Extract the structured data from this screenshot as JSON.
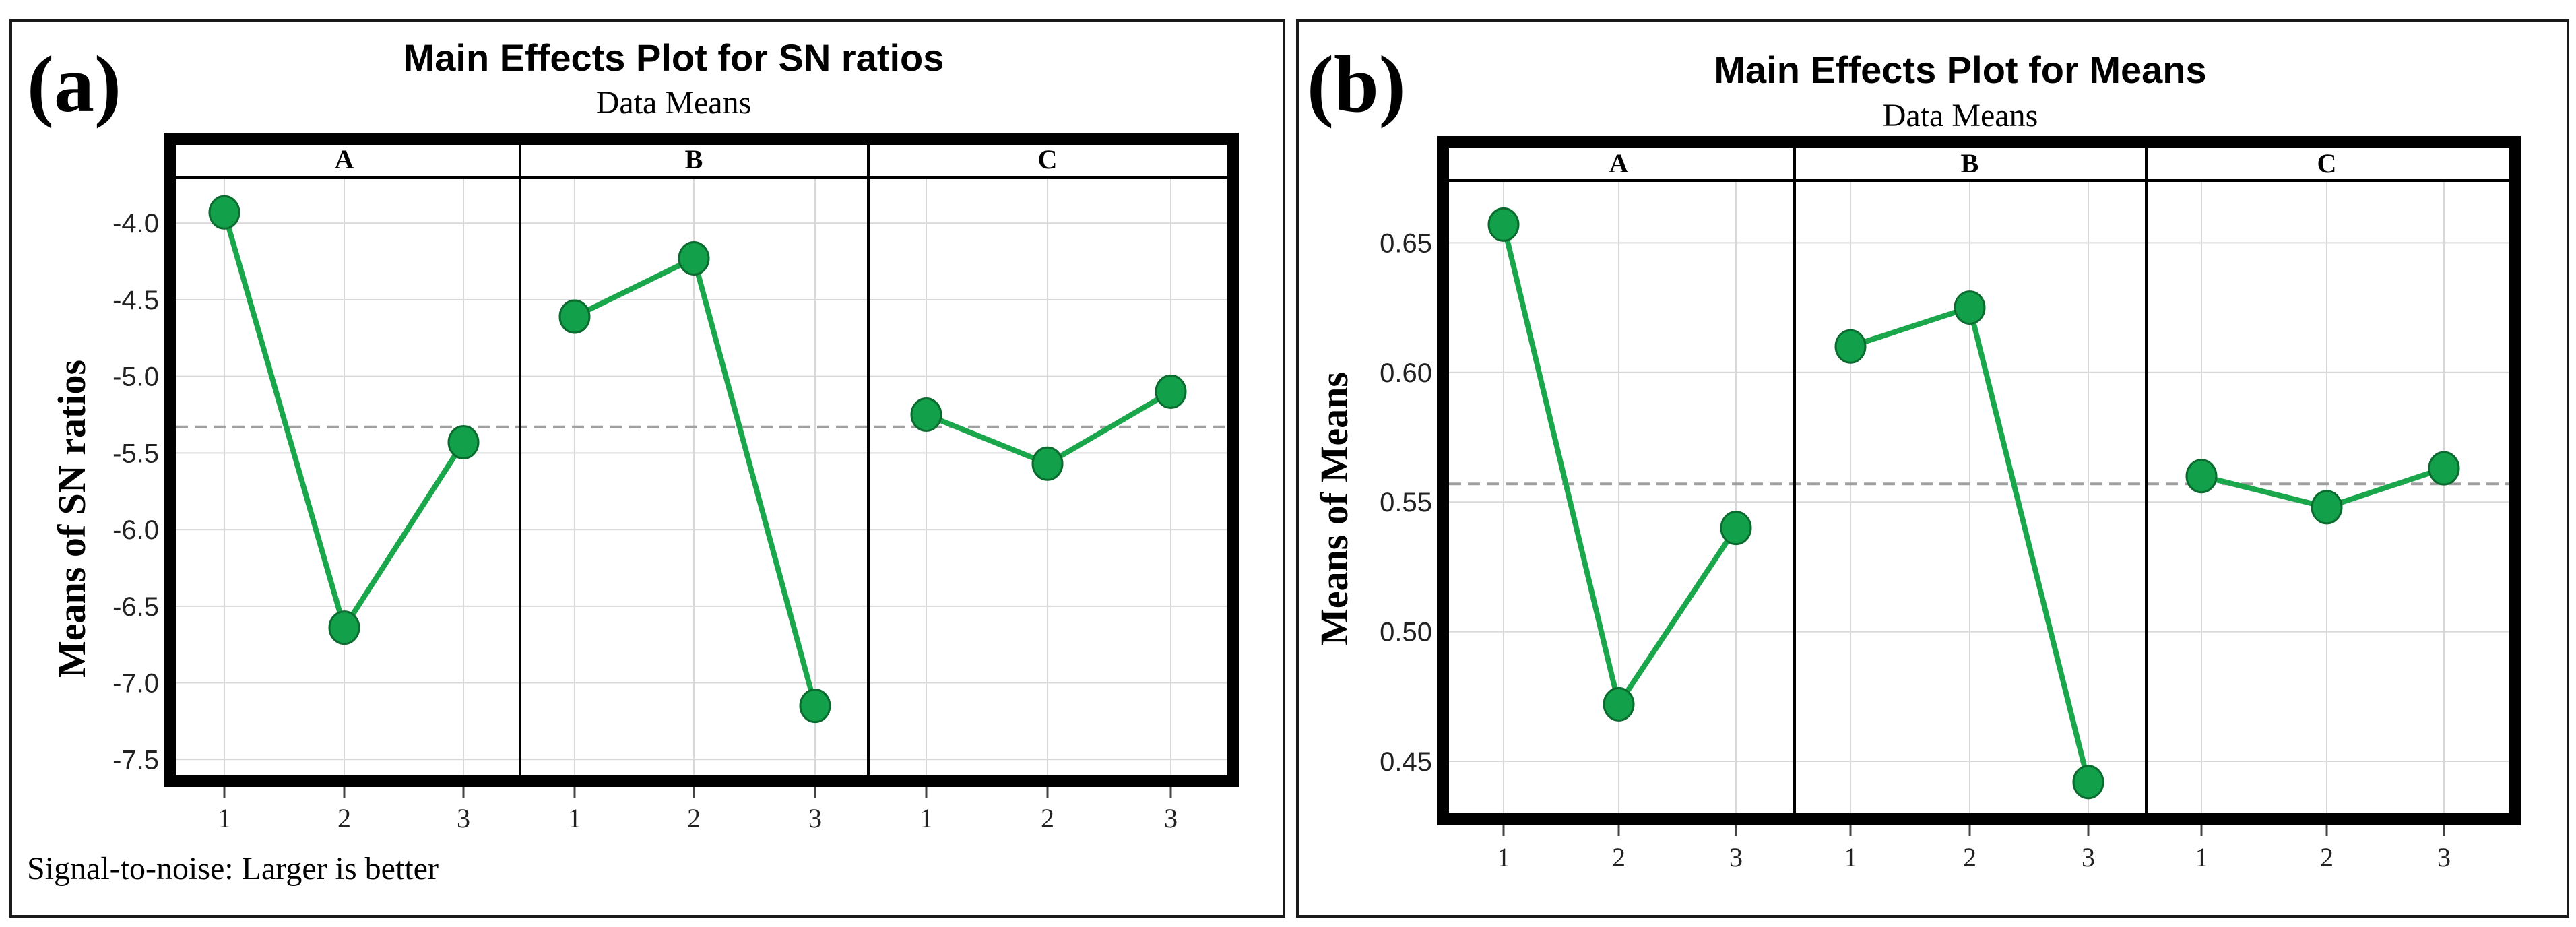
{
  "chart_data": [
    {
      "type": "line",
      "panel_label": "(a)",
      "title": "Main Effects Plot for SN ratios",
      "subtitle": "Data Means",
      "ylabel": "Means of SN ratios",
      "ylim": [
        -7.6,
        -3.7
      ],
      "yticks": [
        -7.5,
        -7.0,
        -6.5,
        -6.0,
        -5.5,
        -5.0,
        -4.5,
        -4.0
      ],
      "ytick_labels": [
        "-7.5",
        "-7.0",
        "-6.5",
        "-6.0",
        "-5.5",
        "-5.0",
        "-4.5",
        "-4.0"
      ],
      "overall_mean": -5.33,
      "footnote": "Signal-to-noise: Larger is better",
      "factors": [
        {
          "name": "A",
          "levels": [
            "1",
            "2",
            "3"
          ],
          "values": [
            -3.93,
            -6.64,
            -5.43
          ]
        },
        {
          "name": "B",
          "levels": [
            "1",
            "2",
            "3"
          ],
          "values": [
            -4.61,
            -4.23,
            -7.15
          ]
        },
        {
          "name": "C",
          "levels": [
            "1",
            "2",
            "3"
          ],
          "values": [
            -5.25,
            -5.57,
            -5.1
          ]
        }
      ],
      "series_color": "#1aa64b"
    },
    {
      "type": "line",
      "panel_label": "(b)",
      "title": "Main Effects Plot for Means",
      "subtitle": "Data Means",
      "ylabel": "Means of Means",
      "ylim": [
        0.43,
        0.674
      ],
      "yticks": [
        0.45,
        0.5,
        0.55,
        0.6,
        0.65
      ],
      "ytick_labels": [
        "0.45",
        "0.50",
        "0.55",
        "0.60",
        "0.65"
      ],
      "overall_mean": 0.557,
      "factors": [
        {
          "name": "A",
          "levels": [
            "1",
            "2",
            "3"
          ],
          "values": [
            0.657,
            0.472,
            0.54
          ]
        },
        {
          "name": "B",
          "levels": [
            "1",
            "2",
            "3"
          ],
          "values": [
            0.61,
            0.625,
            0.442
          ]
        },
        {
          "name": "C",
          "levels": [
            "1",
            "2",
            "3"
          ],
          "values": [
            0.56,
            0.548,
            0.563
          ]
        }
      ],
      "series_color": "#1aa64b"
    }
  ]
}
